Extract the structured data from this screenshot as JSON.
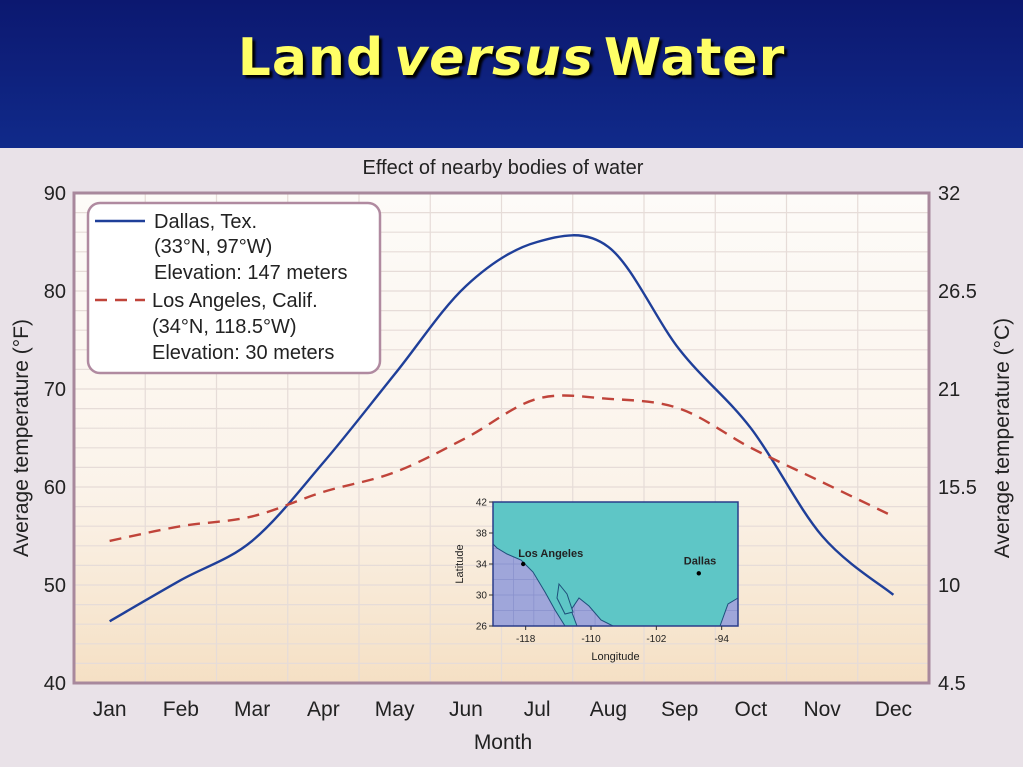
{
  "slide": {
    "title_part1": "Land",
    "title_italic": "versus",
    "title_part2": "Water"
  },
  "colors": {
    "dallas": "#1f3f99",
    "los_angeles": "#c0443a",
    "plot_bg_top": "#fdfbf8",
    "plot_bg_bottom": "#f5e0c4",
    "map_water": "#9fa6da",
    "map_land": "#5ec6c6"
  },
  "chart_data": {
    "type": "line",
    "title": "Effect of nearby bodies of water",
    "xlabel": "Month",
    "ylabel_left": "Average temperature (°F)",
    "ylabel_right": "Average temperature (°C)",
    "categories": [
      "Jan",
      "Feb",
      "Mar",
      "Apr",
      "May",
      "Jun",
      "Jul",
      "Aug",
      "Sep",
      "Oct",
      "Nov",
      "Dec"
    ],
    "ylim": [
      40,
      90
    ],
    "yticks_left": [
      "90",
      "80",
      "70",
      "60",
      "50",
      "40"
    ],
    "yticks_right": [
      "32",
      "26.5",
      "21",
      "15.5",
      "10",
      "4.5"
    ],
    "grid": true,
    "legend_position": "top-left",
    "series": [
      {
        "name": "Dallas, Tex.",
        "legend_lines": [
          "Dallas, Tex.",
          "(33°N, 97°W)",
          "Elevation: 147 meters"
        ],
        "style": "solid",
        "values": [
          46.3,
          50.5,
          54.5,
          62.5,
          71.5,
          80.5,
          85,
          84.5,
          74,
          66,
          55,
          49
        ]
      },
      {
        "name": "Los Angeles, Calif.",
        "legend_lines": [
          "Los Angeles, Calif.",
          "(34°N, 118.5°W)",
          "Elevation: 30 meters"
        ],
        "style": "dashed",
        "values": [
          54.5,
          56,
          57,
          59.5,
          61.5,
          65,
          69,
          69,
          68,
          64,
          60.5,
          57
        ]
      }
    ],
    "inset_map": {
      "xlabel": "Longitude",
      "ylabel": "Latitude",
      "xticks": [
        "-118",
        "-110",
        "-102",
        "-94"
      ],
      "yticks": [
        "42",
        "38",
        "34",
        "30",
        "26"
      ],
      "places": [
        {
          "name": "Los Angeles",
          "lon": -118.3,
          "lat": 34.0
        },
        {
          "name": "Dallas",
          "lon": -96.8,
          "lat": 32.8
        }
      ]
    }
  }
}
